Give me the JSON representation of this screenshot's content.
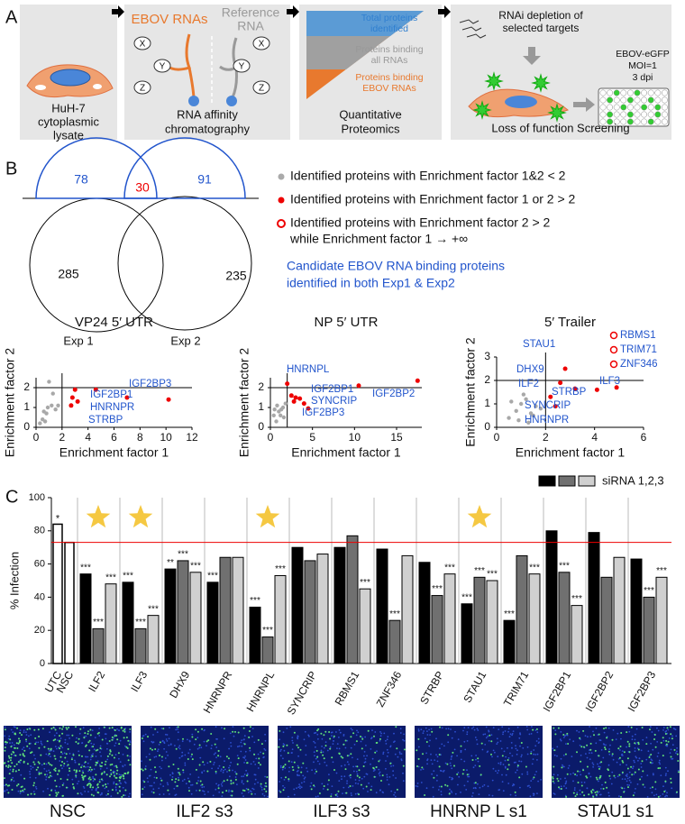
{
  "panel_a": {
    "label": "A",
    "step1": [
      "HuH-7",
      "cytoplasmic",
      "lysate"
    ],
    "step2": {
      "left_title": "EBOV RNAs",
      "right_title": [
        "Reference",
        "RNA"
      ],
      "nodes": [
        "X",
        "Y",
        "Z"
      ],
      "caption": [
        "RNA affinity",
        "chromatography"
      ]
    },
    "step3": {
      "levels": [
        [
          "Total proteins",
          "identified"
        ],
        [
          "Proteins binding",
          "all RNAs"
        ],
        [
          "Proteins binding",
          "EBOV RNAs"
        ]
      ],
      "caption": [
        "Quantitative",
        "Proteomics"
      ]
    },
    "step4": {
      "title": [
        "RNAi depletion of",
        "selected targets"
      ],
      "conditions": [
        "EBOV-eGFP",
        "MOI=1",
        "3 dpi"
      ],
      "caption": "Loss of function Screening"
    }
  },
  "panel_b": {
    "label": "B",
    "venn": {
      "exp1_candidates": 78,
      "shared_candidates": 30,
      "exp2_candidates": 91,
      "exp1_total": 285,
      "exp2_total": 235,
      "set_labels": [
        "Exp 1",
        "Exp 2"
      ]
    },
    "legend": [
      [
        "Identified proteins with Enrichment factor 1&2 < 2"
      ],
      [
        "Identified proteins with Enrichment factor 1 or 2 > 2"
      ],
      [
        "Identified proteins with Enrichment factor 2 > 2",
        "while Enrichment factor 1 → +∞"
      ]
    ],
    "candidate_note": [
      "Candidate EBOV RNA binding proteins",
      "identified in both Exp1 & Exp2"
    ],
    "scatter_plots": [
      {
        "title": "VP24 5′ UTR",
        "xlabel": "Enrichment factor 1",
        "ylabel": "Enrichment factor 2",
        "xlim": [
          0,
          12
        ],
        "xticks": [
          0,
          2,
          4,
          6,
          8,
          10,
          12
        ],
        "ylim": [
          0,
          2.5
        ],
        "yticks": [
          0,
          1,
          2
        ],
        "threshold_x": 2,
        "threshold_y": 2,
        "gray": {
          "x": [
            0.3,
            0.5,
            0.6,
            0.8,
            0.9,
            1.2,
            1.5,
            1.0,
            1.3,
            1.7,
            0.7
          ],
          "y": [
            0.2,
            0.4,
            0.8,
            0.7,
            1.0,
            1.1,
            0.9,
            2.3,
            1.7,
            1.1,
            0.3
          ]
        },
        "red": {
          "x": [
            3.0,
            4.6,
            2.8,
            3.2,
            2.7,
            7.0,
            10.2
          ],
          "y": [
            1.9,
            1.9,
            1.5,
            1.3,
            1.1,
            1.5,
            1.4
          ]
        },
        "labels": [
          "IGF2BP3",
          "IGF2BP1",
          "HNRNPR",
          "STRBP"
        ]
      },
      {
        "title": "NP 5′ UTR",
        "xlabel": "Enrichment factor 1",
        "ylabel": "Enrichment factor 2",
        "xlim": [
          0,
          18
        ],
        "xticks": [
          0,
          5,
          10,
          15
        ],
        "ylim": [
          0,
          2.5
        ],
        "yticks": [
          0,
          1,
          2
        ],
        "threshold_x": 2,
        "threshold_y": 2,
        "gray": {
          "x": [
            0.5,
            0.8,
            1.0,
            1.2,
            1.5,
            0.7,
            1.8,
            1.3,
            0.4,
            1.6
          ],
          "y": [
            0.9,
            1.1,
            0.8,
            0.6,
            1.0,
            0.3,
            1.2,
            0.9,
            0.6,
            0.5
          ]
        },
        "red": {
          "x": [
            2.0,
            10.5,
            17.5,
            2.5,
            3.0,
            3.5,
            2.8,
            4.0,
            4.5
          ],
          "y": [
            2.2,
            2.1,
            2.35,
            1.6,
            1.5,
            1.45,
            1.3,
            1.2,
            0.95
          ]
        },
        "labels": [
          "HNRNPL",
          "IGF2BP1",
          "SYNCRIP",
          "IGF2BP2",
          "IGF2BP3"
        ]
      },
      {
        "title": "5′ Trailer",
        "xlabel": "Enrichment factor 1",
        "ylabel": "Enrichment factor 2",
        "xlim": [
          0,
          6
        ],
        "xticks": [
          0,
          2,
          4,
          6
        ],
        "ylim": [
          0,
          3
        ],
        "yticks": [
          0,
          1,
          2,
          3
        ],
        "threshold_x": 2,
        "threshold_y": 2,
        "gray": {
          "x": [
            0.5,
            0.8,
            1.0,
            1.2,
            1.4,
            1.6,
            1.8,
            0.9,
            1.1,
            0.6,
            1.5,
            1.3
          ],
          "y": [
            0.4,
            0.7,
            1.0,
            1.2,
            0.6,
            0.9,
            0.8,
            0.3,
            1.4,
            1.1,
            0.5,
            0.2
          ]
        },
        "red": {
          "x": [
            2.8,
            2.6,
            3.2,
            4.9,
            2.2,
            2.4,
            4.1
          ],
          "y": [
            2.5,
            1.9,
            1.65,
            1.7,
            1.3,
            0.9,
            1.6
          ]
        },
        "labels": [
          "STAU1",
          "DHX9",
          "ILF2",
          "SYNCRIP",
          "HNRNPR",
          "STRBP",
          "ILF3"
        ],
        "open_circle_labels": [
          "RBMS1",
          "TRIM71",
          "ZNF346"
        ]
      }
    ]
  },
  "panel_c": {
    "label": "C",
    "ylabel": "% Infection",
    "legend": "siRNA 1,2,3",
    "ylim": [
      0,
      100
    ],
    "yticks": [
      0,
      20,
      40,
      60,
      80,
      100
    ],
    "reference_line": 73,
    "controls": {
      "categories": [
        "UTC",
        "NSC"
      ],
      "values": [
        84,
        73
      ],
      "significance": [
        "*",
        null
      ]
    },
    "categories": [
      "ILF2",
      "ILF3",
      "DHX9",
      "HNRNPR",
      "HNRNPL",
      "SYNCRIP",
      "RBMS1",
      "ZNF346",
      "STRBP",
      "STAU1",
      "TRIM71",
      "IGF2BP1",
      "IGF2BP2",
      "IGF2BP3"
    ],
    "star": [
      true,
      true,
      false,
      false,
      true,
      false,
      false,
      false,
      false,
      true,
      false,
      false,
      false,
      false
    ],
    "series": [
      {
        "color": "#000000",
        "values": [
          54,
          49,
          57,
          49,
          34,
          70,
          70,
          69,
          61,
          36,
          26,
          80,
          79,
          63
        ],
        "significance": [
          "***",
          "***",
          "**",
          "***",
          "***",
          null,
          null,
          null,
          null,
          "***",
          "***",
          null,
          null,
          null
        ]
      },
      {
        "color": "#707070",
        "values": [
          21,
          21,
          62,
          64,
          16,
          62,
          77,
          26,
          41,
          52,
          65,
          55,
          52,
          40
        ],
        "significance": [
          "***",
          "***",
          "***",
          null,
          "***",
          null,
          null,
          "***",
          "***",
          "***",
          null,
          "***",
          null,
          "***"
        ]
      },
      {
        "color": "#d0d0d0",
        "values": [
          48,
          29,
          55,
          64,
          53,
          66,
          45,
          65,
          54,
          50,
          54,
          35,
          64,
          52
        ],
        "significance": [
          "***",
          "***",
          "***",
          null,
          "***",
          null,
          "***",
          null,
          "***",
          "***",
          "***",
          "***",
          null,
          "***"
        ]
      }
    ]
  },
  "images": {
    "labels": [
      "NSC",
      "ILF2 s3",
      "ILF3 s3",
      "HNRNP L s1",
      "STAU1 s1"
    ]
  }
}
